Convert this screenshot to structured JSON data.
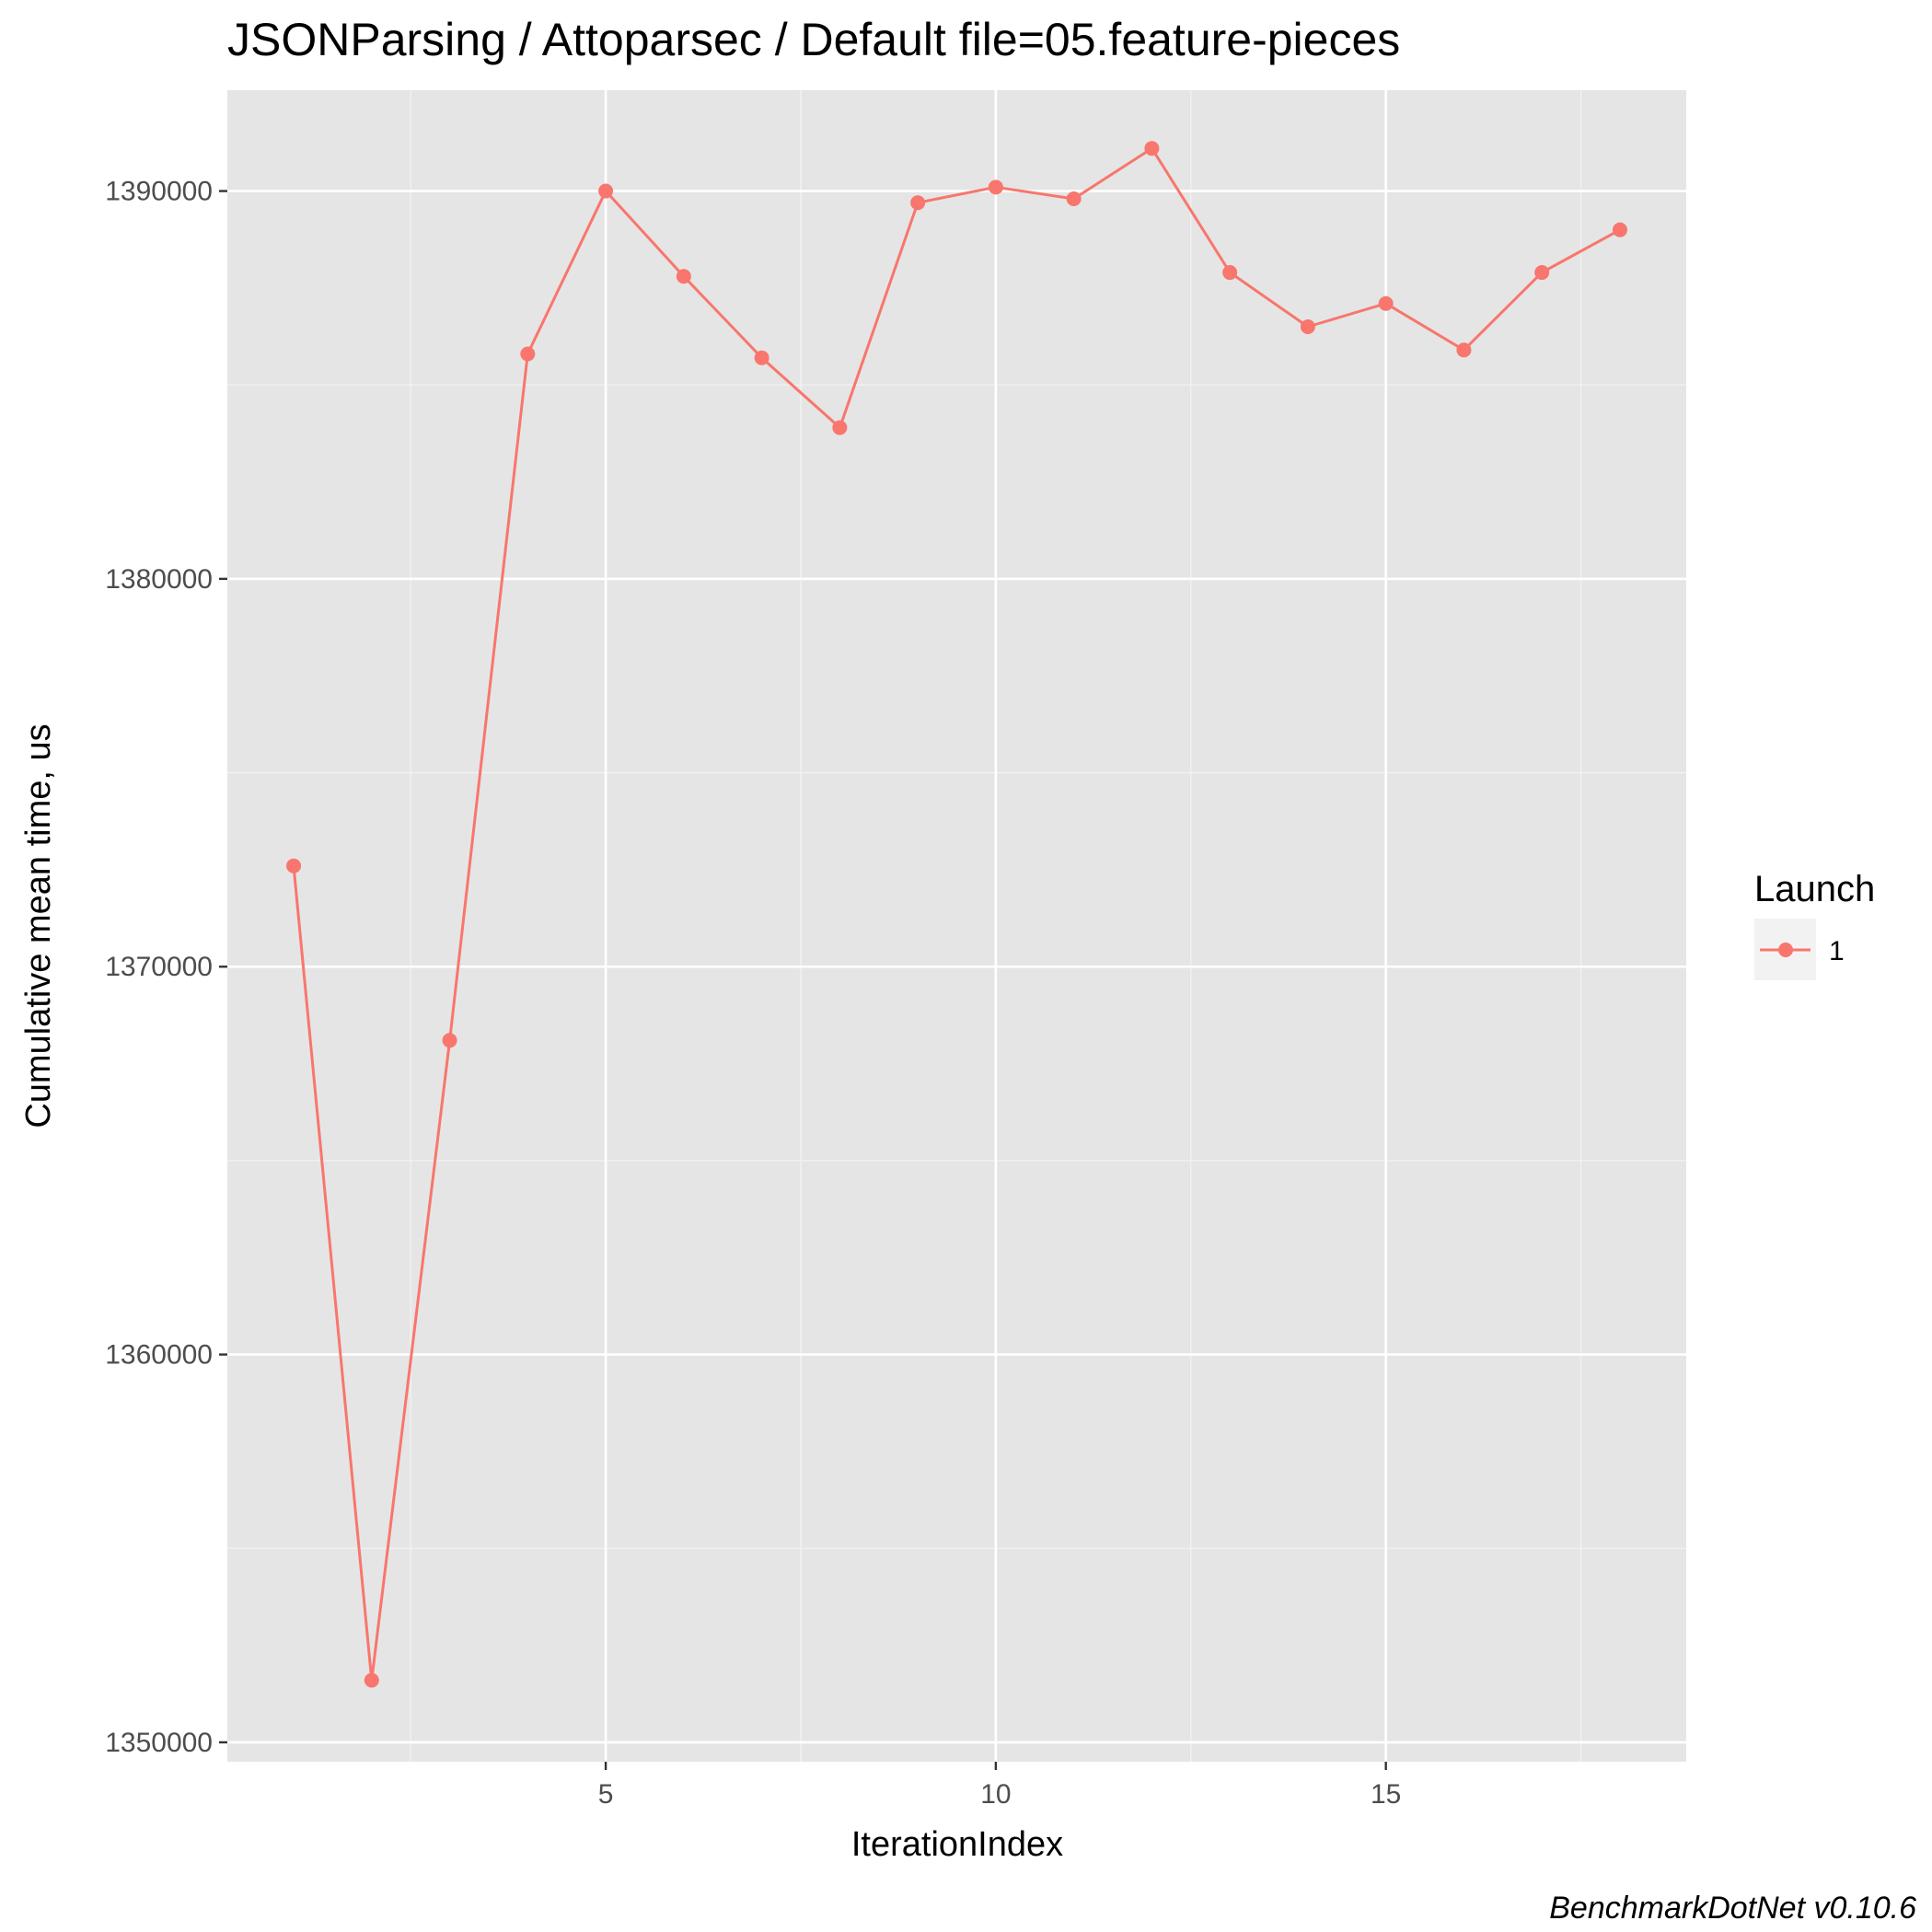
{
  "chart_data": {
    "type": "line",
    "title": "JSONParsing / Attoparsec / Default file=05.feature-pieces",
    "xlabel": "IterationIndex",
    "ylabel": "Cumulative mean time, us",
    "caption": "BenchmarkDotNet v0.10.6",
    "xlim": [
      0.15,
      18.85
    ],
    "ylim": [
      1349500,
      1392600
    ],
    "x_ticks": [
      5,
      10,
      15
    ],
    "x_tick_labels": [
      "5",
      "10",
      "15"
    ],
    "y_ticks": [
      1350000,
      1360000,
      1370000,
      1380000,
      1390000
    ],
    "y_tick_labels": [
      "1350000",
      "1360000",
      "1370000",
      "1380000",
      "1390000"
    ],
    "grid": true,
    "legend": {
      "title": "Launch",
      "position": "right"
    },
    "series": [
      {
        "name": "1",
        "color": "#f8766d",
        "x": [
          1,
          2,
          3,
          4,
          5,
          6,
          7,
          8,
          9,
          10,
          11,
          12,
          13,
          14,
          15,
          16,
          17,
          18
        ],
        "values": [
          1372600,
          1351600,
          1368100,
          1385800,
          1390000,
          1387800,
          1385700,
          1383900,
          1389700,
          1390100,
          1389800,
          1391100,
          1387900,
          1386500,
          1387100,
          1385900,
          1387900,
          1389000
        ]
      }
    ]
  }
}
